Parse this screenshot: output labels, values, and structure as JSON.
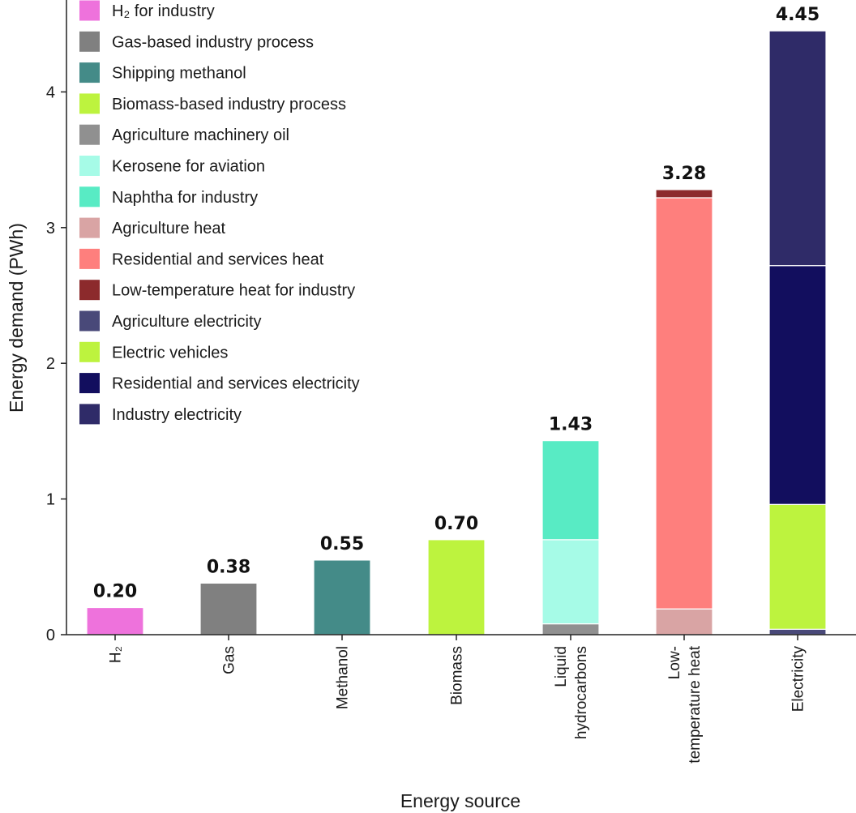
{
  "chart_data": {
    "type": "bar",
    "stacked": true,
    "xlabel": "Energy source",
    "ylabel": "Energy demand (PWh)",
    "ylim": [
      0,
      4.55
    ],
    "yticks": [
      0,
      1,
      2,
      3,
      4
    ],
    "legend_position": "top-left",
    "categories": [
      {
        "key": "h2",
        "lines": [
          "H₂"
        ]
      },
      {
        "key": "gas",
        "lines": [
          "Gas"
        ]
      },
      {
        "key": "methanol",
        "lines": [
          "Methanol"
        ]
      },
      {
        "key": "biomass",
        "lines": [
          "Biomass"
        ]
      },
      {
        "key": "liquid-hydrocarbons",
        "lines": [
          "Liquid",
          "hydrocarbons"
        ]
      },
      {
        "key": "low-temperature-heat",
        "lines": [
          "Low-",
          "temperature heat"
        ]
      },
      {
        "key": "electricity",
        "lines": [
          "Electricity"
        ]
      }
    ],
    "totals": [
      "0.20",
      "0.38",
      "0.55",
      "0.70",
      "1.43",
      "3.28",
      "4.45"
    ],
    "series": [
      {
        "name": "H₂ for industry",
        "color": "#ee72dc",
        "values": [
          0.2,
          0,
          0,
          0,
          0,
          0,
          0
        ]
      },
      {
        "name": "Gas-based industry process",
        "color": "#808080",
        "values": [
          0,
          0.38,
          0,
          0,
          0,
          0,
          0
        ]
      },
      {
        "name": "Shipping methanol",
        "color": "#448b88",
        "values": [
          0,
          0,
          0.55,
          0,
          0,
          0,
          0
        ]
      },
      {
        "name": "Biomass-based industry process",
        "color": "#bdf33e",
        "values": [
          0,
          0,
          0,
          0.7,
          0,
          0,
          0
        ]
      },
      {
        "name": "Agriculture machinery oil",
        "color": "#909090",
        "values": [
          0,
          0,
          0,
          0,
          0.08,
          0,
          0
        ]
      },
      {
        "name": "Kerosene for aviation",
        "color": "#a6fbe7",
        "values": [
          0,
          0,
          0,
          0,
          0.62,
          0,
          0
        ]
      },
      {
        "name": "Naphtha for industry",
        "color": "#58ebc4",
        "values": [
          0,
          0,
          0,
          0,
          0.73,
          0,
          0
        ]
      },
      {
        "name": "Agriculture heat",
        "color": "#d9a4a4",
        "values": [
          0,
          0,
          0,
          0,
          0,
          0.19,
          0
        ]
      },
      {
        "name": "Residential and services heat",
        "color": "#fe7f7d",
        "values": [
          0,
          0,
          0,
          0,
          0,
          3.03,
          0
        ]
      },
      {
        "name": "Low-temperature heat for industry",
        "color": "#8c2a2c",
        "values": [
          0,
          0,
          0,
          0,
          0,
          0.06,
          0
        ]
      },
      {
        "name": "Agriculture electricity",
        "color": "#494979",
        "values": [
          0,
          0,
          0,
          0,
          0,
          0,
          0.04
        ]
      },
      {
        "name": "Electric vehicles",
        "color": "#bdf33e",
        "values": [
          0,
          0,
          0,
          0,
          0,
          0,
          0.92
        ]
      },
      {
        "name": "Residential and services electricity",
        "color": "#120e5e",
        "values": [
          0,
          0,
          0,
          0,
          0,
          0,
          1.76
        ]
      },
      {
        "name": "Industry electricity",
        "color": "#2f2b68",
        "values": [
          0,
          0,
          0,
          0,
          0,
          0,
          1.73
        ]
      }
    ]
  }
}
